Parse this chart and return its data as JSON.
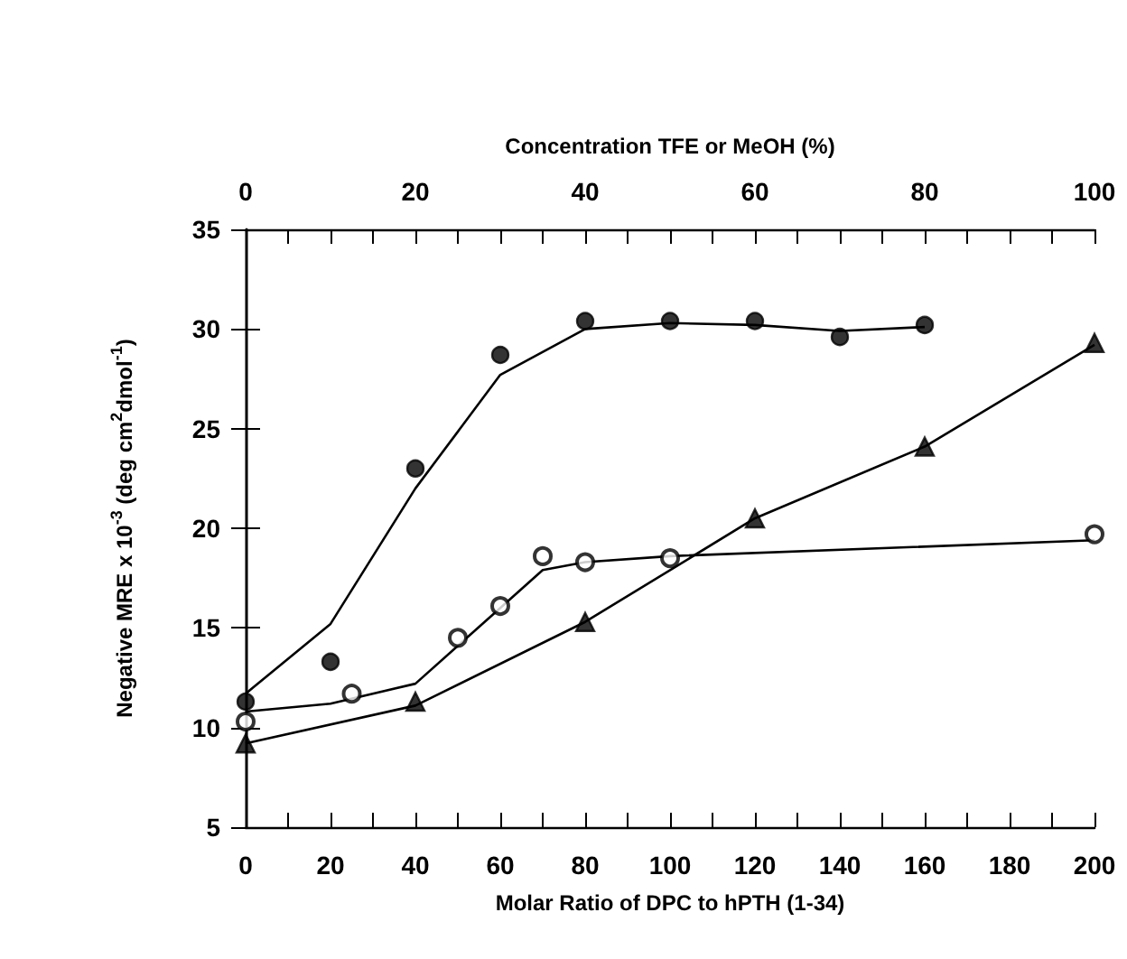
{
  "chart_data": {
    "type": "scatter",
    "xlabel": "Molar Ratio of DPC to hPTH (1-34)",
    "x2label": "Concentration TFE or MeOH (%)",
    "ylabel": "Negative MRE x 10$^{-3}$ (deg cm$^{2}$dmol$^{-1}$)",
    "xlim": [
      0,
      200
    ],
    "xticks": [
      0,
      {
        "value": 10,
        "label": null
      },
      20,
      {
        "value": 30,
        "label": null
      },
      40,
      {
        "value": 50,
        "label": null
      },
      60,
      {
        "value": 70,
        "label": null
      },
      80,
      {
        "value": 90,
        "label": null
      },
      100,
      {
        "value": 110,
        "label": null
      },
      120,
      {
        "value": 130,
        "label": null
      },
      140,
      {
        "value": 150,
        "label": null
      },
      160,
      {
        "value": 170,
        "label": null
      },
      180,
      {
        "value": 190,
        "label": null
      },
      200
    ],
    "x2lim": [
      0,
      100
    ],
    "x2ticks": [
      0,
      {
        "value": 5,
        "label": null
      },
      {
        "value": 10,
        "label": null
      },
      {
        "value": 15,
        "label": null
      },
      20,
      {
        "value": 25,
        "label": null
      },
      {
        "value": 30,
        "label": null
      },
      {
        "value": 35,
        "label": null
      },
      40,
      {
        "value": 45,
        "label": null
      },
      {
        "value": 50,
        "label": null
      },
      {
        "value": 55,
        "label": null
      },
      60,
      {
        "value": 65,
        "label": null
      },
      {
        "value": 70,
        "label": null
      },
      {
        "value": 75,
        "label": null
      },
      80,
      {
        "value": 85,
        "label": null
      },
      {
        "value": 90,
        "label": null
      },
      {
        "value": 95,
        "label": null
      },
      100
    ],
    "ylim": [
      5,
      35
    ],
    "yticks": [
      5,
      10,
      15,
      20,
      25,
      30,
      35
    ],
    "grid": false,
    "series": [
      {
        "marker": "circle",
        "color": "#000000",
        "x": [
          0,
          20,
          40,
          60,
          80,
          100,
          120,
          140,
          160
        ],
        "values": [
          11.3,
          13.3,
          23.0,
          28.7,
          30.4,
          30.4,
          30.4,
          29.6,
          30.2
        ]
      },
      {
        "marker": "empty circle",
        "color": "#000000",
        "x": [
          0,
          25,
          50,
          60,
          70,
          80,
          100,
          200
        ],
        "values": [
          10.3,
          11.7,
          14.5,
          16.1,
          18.6,
          18.3,
          18.5,
          19.7
        ]
      },
      {
        "marker": "triangle",
        "color": "#000000",
        "x": [
          0,
          40,
          80,
          120,
          160,
          200
        ],
        "values": [
          9.2,
          11.3,
          15.3,
          20.5,
          24.1,
          29.3
        ]
      },
      {
        "type": "line",
        "marker": "none",
        "color": "#000000",
        "x": [
          0,
          20,
          40,
          60,
          80,
          100,
          120,
          140,
          160
        ],
        "values": [
          11.7,
          15.2,
          22.0,
          27.7,
          30.0,
          30.3,
          30.2,
          29.9,
          30.1
        ]
      },
      {
        "type": "line",
        "marker": "none",
        "color": "#000000",
        "x": [
          0,
          20,
          40,
          60,
          70,
          80,
          100,
          200
        ],
        "values": [
          10.8,
          11.2,
          12.2,
          16.0,
          17.9,
          18.3,
          18.6,
          19.4
        ]
      },
      {
        "type": "line",
        "marker": "none",
        "color": "#000000",
        "x": [
          0,
          40,
          80,
          120,
          160,
          200
        ],
        "values": [
          9.2,
          11.1,
          15.3,
          20.5,
          24.1,
          29.2
        ]
      }
    ]
  }
}
